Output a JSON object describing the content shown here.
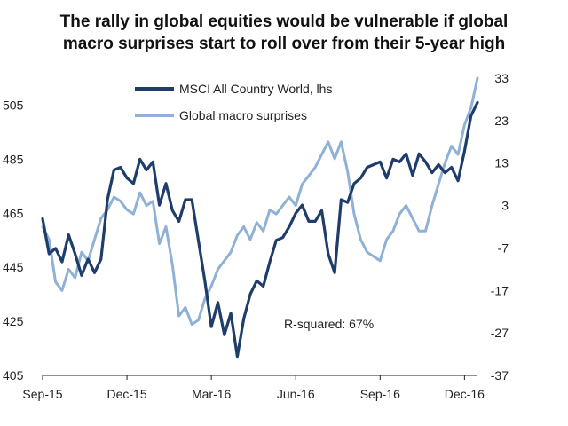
{
  "chart_data": {
    "type": "line",
    "title_line1": "The rally in global equities would be vulnerable if global",
    "title_line2": "macro surprises start to roll over from their 5-year high",
    "x_tick_labels": [
      "Sep-15",
      "Dec-15",
      "Mar-16",
      "Jun-16",
      "Sep-16",
      "Dec-16"
    ],
    "left_axis": {
      "ticks": [
        405,
        425,
        445,
        465,
        485,
        505
      ],
      "range": [
        405,
        515
      ]
    },
    "right_axis": {
      "ticks": [
        -37,
        -27,
        -17,
        -7,
        3,
        13,
        23,
        33
      ],
      "range": [
        -37,
        33
      ]
    },
    "annotation": "R-squared: 67%",
    "legend_position": "top-center",
    "series": [
      {
        "name": "MSCI All Country World, lhs",
        "axis": "left",
        "color": "#1f3d6b",
        "x": [
          0,
          1,
          2,
          3,
          4,
          5,
          6,
          7,
          8,
          9,
          10,
          11,
          12,
          13,
          14,
          15,
          16,
          17,
          18,
          19,
          20,
          21,
          22,
          23,
          24,
          25,
          26,
          27,
          28,
          29,
          30,
          31,
          32,
          33,
          34,
          35,
          36,
          37,
          38,
          39,
          40,
          41,
          42,
          43,
          44,
          45,
          46,
          47,
          48,
          49,
          50,
          51,
          52,
          53,
          54,
          55,
          56,
          57,
          58,
          59,
          60,
          61,
          62,
          63,
          64,
          65,
          66,
          67
        ],
        "values": [
          463,
          450,
          452,
          447,
          457,
          450,
          442,
          448,
          443,
          448,
          470,
          481,
          482,
          478,
          476,
          485,
          481,
          484,
          468,
          476,
          466,
          462,
          470,
          470,
          455,
          440,
          423,
          432,
          420,
          428,
          412,
          426,
          435,
          440,
          438,
          447,
          455,
          456,
          460,
          465,
          468,
          462,
          462,
          466,
          450,
          443,
          470,
          469,
          476,
          478,
          482,
          483,
          484,
          478,
          485,
          484,
          487,
          479,
          487,
          484,
          480,
          483,
          480,
          482,
          477,
          488,
          501,
          506
        ]
      },
      {
        "name": "Global macro surprises",
        "axis": "right",
        "color": "#8fb1d6",
        "x": [
          0,
          1,
          2,
          3,
          4,
          5,
          6,
          7,
          8,
          9,
          10,
          11,
          12,
          13,
          14,
          15,
          16,
          17,
          18,
          19,
          20,
          21,
          22,
          23,
          24,
          25,
          26,
          27,
          28,
          29,
          30,
          31,
          32,
          33,
          34,
          35,
          36,
          37,
          38,
          39,
          40,
          41,
          42,
          43,
          44,
          45,
          46,
          47,
          48,
          49,
          50,
          51,
          52,
          53,
          54,
          55,
          56,
          57,
          58,
          59,
          60,
          61,
          62,
          63,
          64,
          65,
          66,
          67
        ],
        "values": [
          -2,
          -5,
          -15,
          -17,
          -12,
          -14,
          -8,
          -10,
          -5,
          0,
          2,
          5,
          4,
          2,
          1,
          6,
          3,
          4,
          -6,
          -2,
          -11,
          -23,
          -21,
          -25,
          -24,
          -19,
          -16,
          -12,
          -10,
          -8,
          -4,
          -2,
          -5,
          -1,
          -3,
          2,
          1,
          3,
          5,
          3,
          8,
          10,
          12,
          15,
          18,
          14,
          18,
          11,
          1,
          -5,
          -8,
          -9,
          -10,
          -5,
          -3,
          1,
          3,
          0,
          -3,
          -3,
          3,
          8,
          13,
          17,
          15,
          22,
          26,
          33
        ]
      }
    ]
  }
}
